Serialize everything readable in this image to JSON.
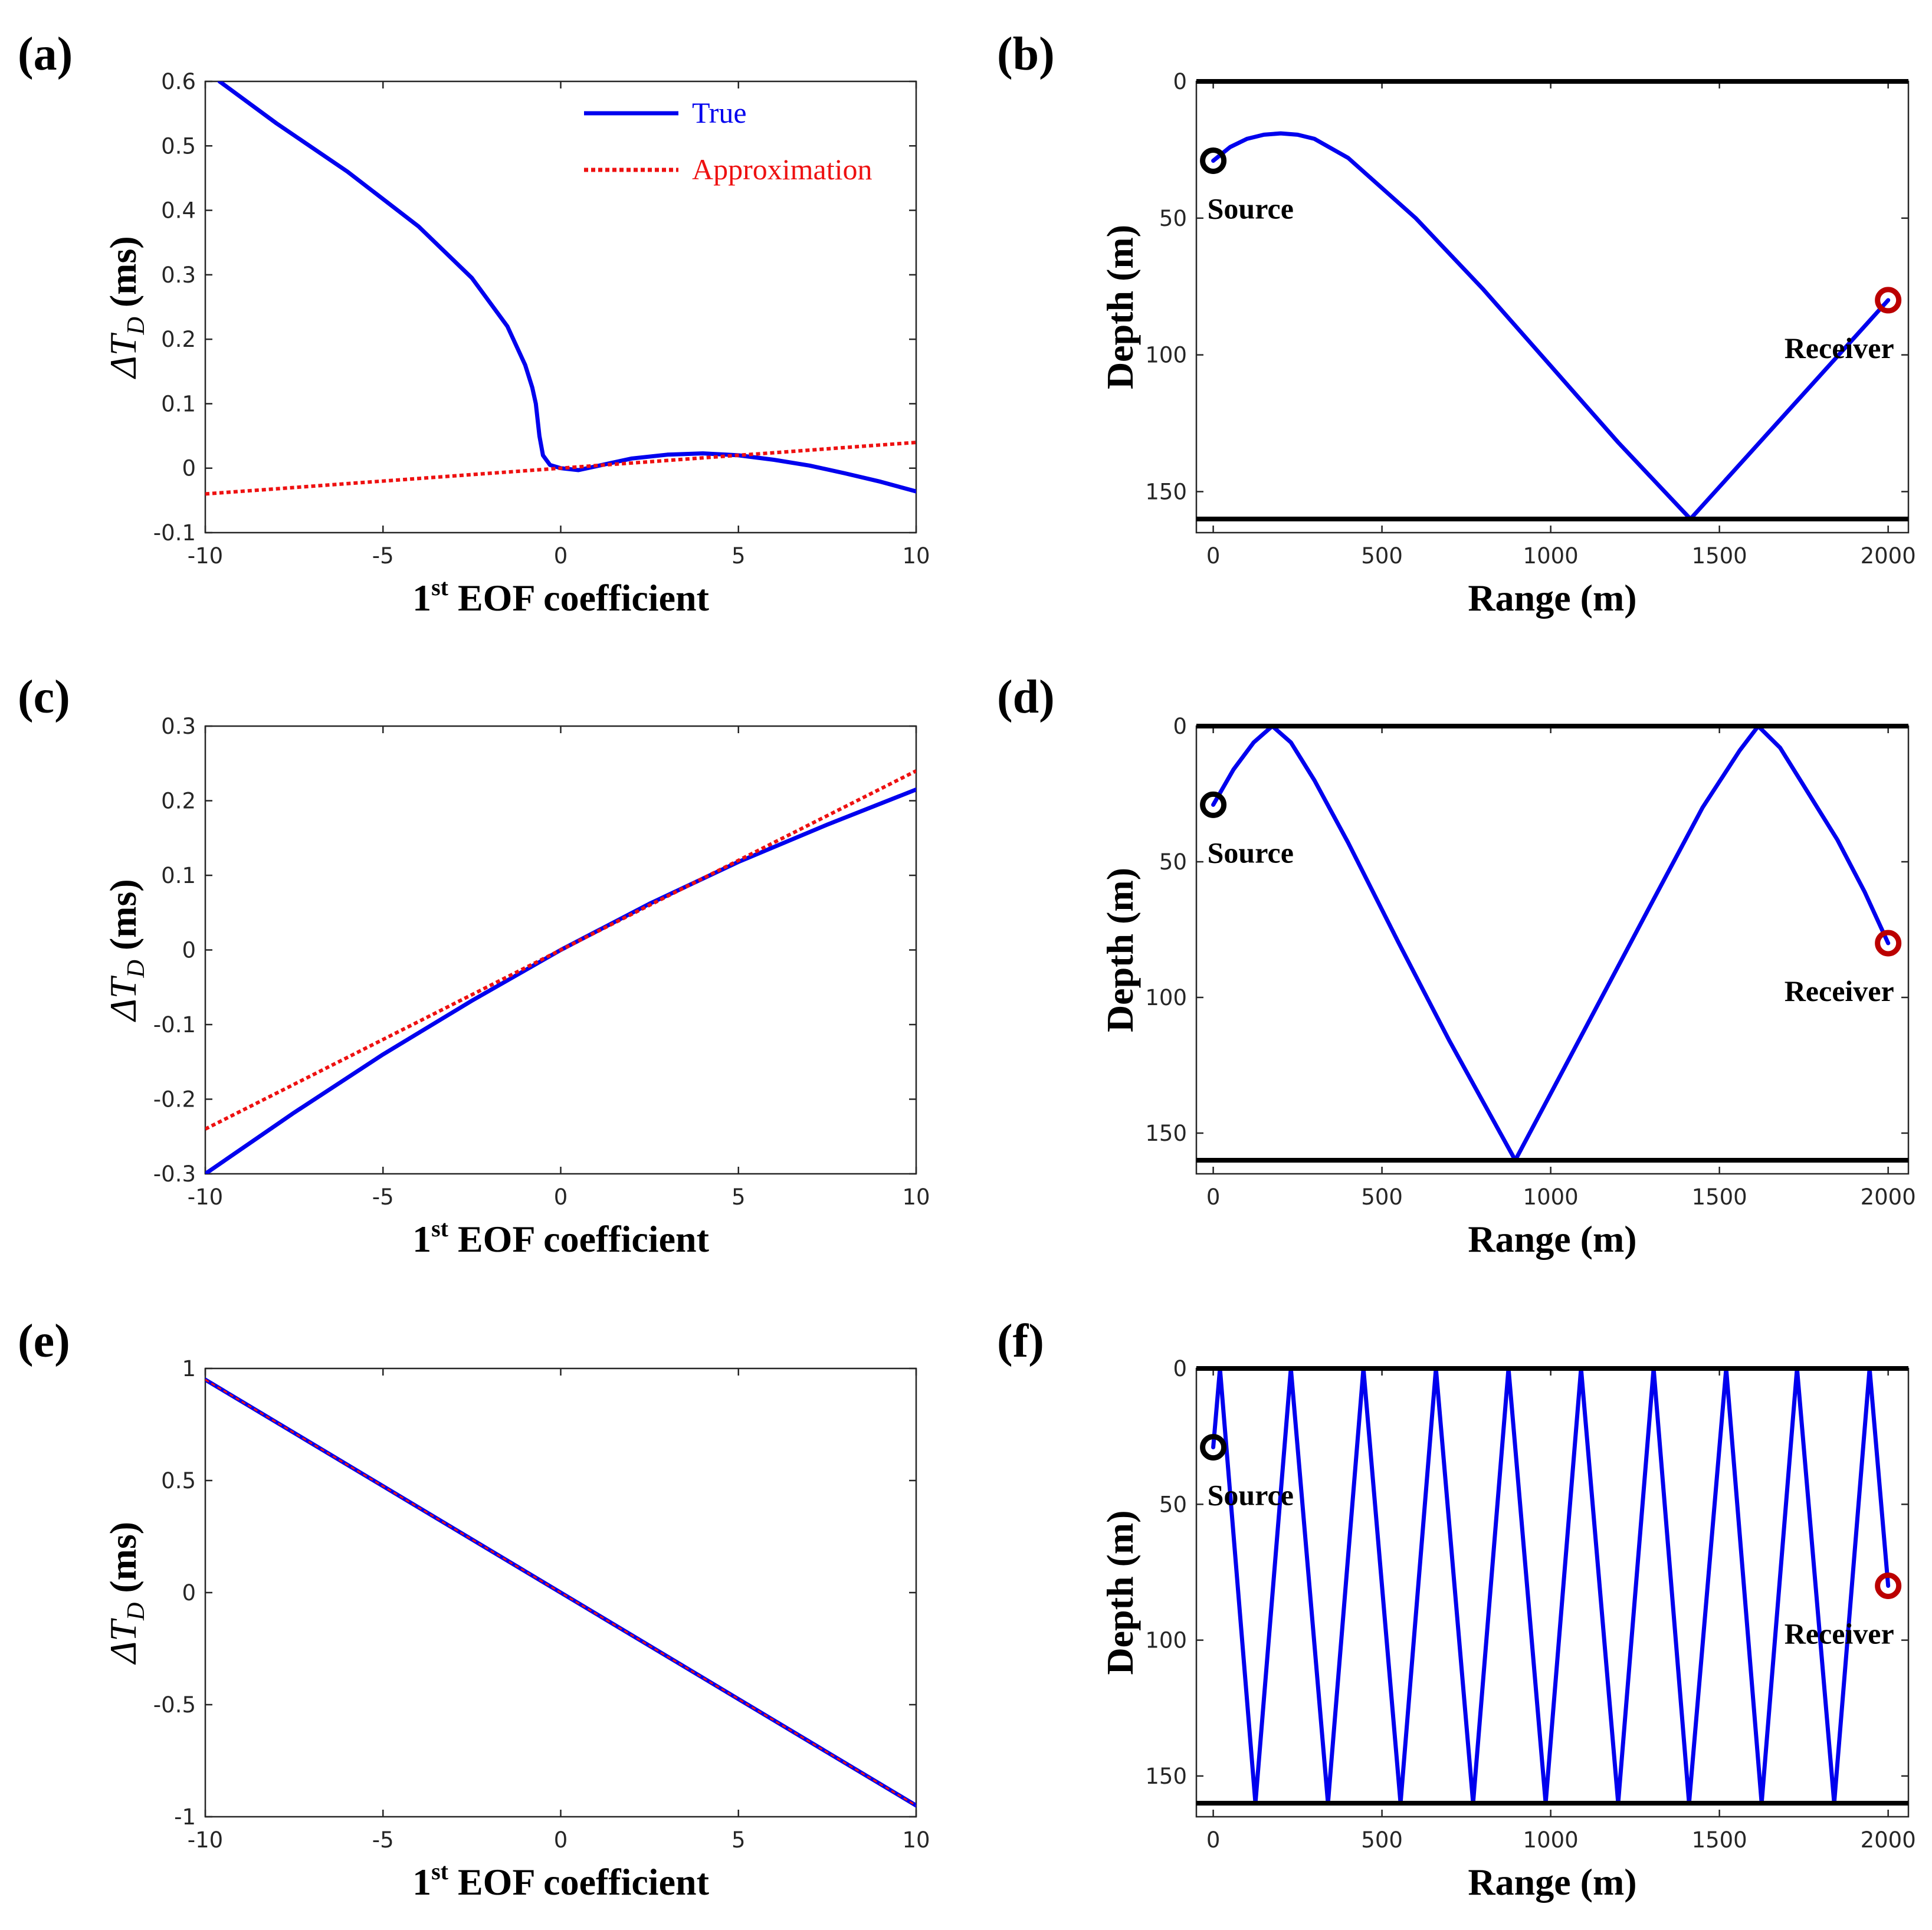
{
  "figure_labels": [
    "(a)",
    "(b)",
    "(c)",
    "(d)",
    "(e)",
    "(f)"
  ],
  "colors": {
    "true": "#0000ee",
    "approximation": "#ee1111",
    "boundary": "#000000",
    "source": "#000000",
    "receiver": "#bb0000"
  },
  "chart_data": [
    {
      "id": "a",
      "type": "line",
      "label": "(a)",
      "xlabel_main": "1",
      "xlabel_sup": "st",
      "xlabel_rest": " EOF coefficient",
      "ylabel_delta": "ΔT",
      "ylabel_sub": "D",
      "ylabel_unit": "  (ms)",
      "xlim": [
        -10,
        10
      ],
      "ylim": [
        -0.1,
        0.6
      ],
      "xticks": [
        -10,
        -5,
        0,
        5,
        10
      ],
      "xtick_labels": [
        "-10",
        "-5",
        "0",
        "5",
        "10"
      ],
      "yticks": [
        -0.1,
        0,
        0.1,
        0.2,
        0.3,
        0.4,
        0.5,
        0.6
      ],
      "ytick_labels": [
        "-0.1",
        "0",
        "0.1",
        "0.2",
        "0.3",
        "0.4",
        "0.5",
        "0.6"
      ],
      "legend": {
        "position": "top-right",
        "entries": [
          "True",
          "Approximation"
        ]
      },
      "series": [
        {
          "name": "True",
          "style": "solid",
          "x": [
            -9.6,
            -8,
            -6,
            -4,
            -2.5,
            -1.5,
            -1,
            -0.8,
            -0.7,
            -0.6,
            -0.5,
            -0.3,
            0,
            0.5,
            1,
            2,
            3,
            4,
            5,
            6,
            7,
            8,
            9,
            10
          ],
          "y": [
            0.6,
            0.535,
            0.46,
            0.375,
            0.295,
            0.22,
            0.16,
            0.125,
            0.1,
            0.05,
            0.02,
            0.005,
            0,
            -0.003,
            0.003,
            0.015,
            0.021,
            0.023,
            0.02,
            0.013,
            0.004,
            -0.008,
            -0.021,
            -0.036
          ]
        },
        {
          "name": "Approximation",
          "style": "dotted",
          "x": [
            -10,
            10
          ],
          "y": [
            -0.04,
            0.04
          ]
        }
      ]
    },
    {
      "id": "b",
      "type": "line",
      "label": "(b)",
      "xlabel": "Range (m)",
      "ylabel": "Depth (m)",
      "xlim": [
        -50,
        2060
      ],
      "ylim": [
        0,
        165
      ],
      "y_reversed": true,
      "xticks": [
        0,
        500,
        1000,
        1500,
        2000
      ],
      "xtick_labels": [
        "0",
        "500",
        "1000",
        "1500",
        "2000"
      ],
      "yticks": [
        0,
        50,
        100,
        150
      ],
      "ytick_labels": [
        "0",
        "50",
        "100",
        "150"
      ],
      "boundaries": [
        0,
        160
      ],
      "source": {
        "x": 0,
        "y": 29,
        "label": "Source"
      },
      "receiver": {
        "x": 2000,
        "y": 80,
        "label": "Receiver"
      },
      "series": [
        {
          "name": "Ray",
          "style": "solid",
          "x": [
            0,
            50,
            100,
            150,
            200,
            250,
            300,
            400,
            600,
            800,
            1000,
            1200,
            1414,
            2000
          ],
          "y": [
            29,
            24,
            21,
            19.5,
            19,
            19.5,
            21,
            28,
            50,
            76,
            104,
            132,
            160,
            80
          ]
        }
      ]
    },
    {
      "id": "c",
      "type": "line",
      "label": "(c)",
      "xlabel_main": "1",
      "xlabel_sup": "st",
      "xlabel_rest": " EOF coefficient",
      "ylabel_delta": "ΔT",
      "ylabel_sub": "D",
      "ylabel_unit": "  (ms)",
      "xlim": [
        -10,
        10
      ],
      "ylim": [
        -0.3,
        0.3
      ],
      "xticks": [
        -10,
        -5,
        0,
        5,
        10
      ],
      "xtick_labels": [
        "-10",
        "-5",
        "0",
        "5",
        "10"
      ],
      "yticks": [
        -0.3,
        -0.2,
        -0.1,
        0,
        0.1,
        0.2,
        0.3
      ],
      "ytick_labels": [
        "-0.3",
        "-0.2",
        "-0.1",
        "0",
        "0.1",
        "0.2",
        "0.3"
      ],
      "series": [
        {
          "name": "True",
          "style": "solid",
          "x": [
            -10,
            -7.5,
            -5,
            -2.5,
            0,
            2.5,
            5,
            7.5,
            10
          ],
          "y": [
            -0.3,
            -0.218,
            -0.14,
            -0.068,
            0,
            0.062,
            0.118,
            0.168,
            0.215
          ]
        },
        {
          "name": "Approximation",
          "style": "dotted",
          "x": [
            -10,
            10
          ],
          "y": [
            -0.24,
            0.24
          ]
        }
      ]
    },
    {
      "id": "d",
      "type": "line",
      "label": "(d)",
      "xlabel": "Range (m)",
      "ylabel": "Depth (m)",
      "xlim": [
        -50,
        2060
      ],
      "ylim": [
        0,
        165
      ],
      "y_reversed": true,
      "xticks": [
        0,
        500,
        1000,
        1500,
        2000
      ],
      "xtick_labels": [
        "0",
        "500",
        "1000",
        "1500",
        "2000"
      ],
      "yticks": [
        0,
        50,
        100,
        150
      ],
      "ytick_labels": [
        "0",
        "50",
        "100",
        "150"
      ],
      "boundaries": [
        0,
        160
      ],
      "source": {
        "x": 0,
        "y": 29,
        "label": "Source"
      },
      "receiver": {
        "x": 2000,
        "y": 80,
        "label": "Receiver"
      },
      "series": [
        {
          "name": "Ray",
          "style": "solid",
          "x": [
            0,
            60,
            120,
            175,
            230,
            300,
            400,
            550,
            700,
            895,
            1100,
            1300,
            1450,
            1560,
            1615,
            1680,
            1760,
            1850,
            1930,
            2000
          ],
          "y": [
            29,
            16,
            6,
            0,
            6,
            20,
            43,
            80,
            116,
            160,
            112,
            65,
            30,
            9,
            0,
            8,
            24,
            42,
            61,
            80
          ]
        }
      ]
    },
    {
      "id": "e",
      "type": "line",
      "label": "(e)",
      "xlabel_main": "1",
      "xlabel_sup": "st",
      "xlabel_rest": " EOF coefficient",
      "ylabel_delta": "ΔT",
      "ylabel_sub": "D",
      "ylabel_unit": "  (ms)",
      "xlim": [
        -10,
        10
      ],
      "ylim": [
        -1,
        1
      ],
      "xticks": [
        -10,
        -5,
        0,
        5,
        10
      ],
      "xtick_labels": [
        "-10",
        "-5",
        "0",
        "5",
        "10"
      ],
      "yticks": [
        -1,
        -0.5,
        0,
        0.5,
        1
      ],
      "ytick_labels": [
        "-1",
        "-0.5",
        "0",
        "0.5",
        "1"
      ],
      "series": [
        {
          "name": "True",
          "style": "solid",
          "x": [
            -10,
            10
          ],
          "y": [
            0.95,
            -0.95
          ]
        },
        {
          "name": "Approximation",
          "style": "dotted",
          "x": [
            -10,
            10
          ],
          "y": [
            0.95,
            -0.95
          ]
        }
      ]
    },
    {
      "id": "f",
      "type": "line",
      "label": "(f)",
      "xlabel": "Range (m)",
      "ylabel": "Depth (m)",
      "xlim": [
        -50,
        2060
      ],
      "ylim": [
        0,
        165
      ],
      "y_reversed": true,
      "xticks": [
        0,
        500,
        1000,
        1500,
        2000
      ],
      "xtick_labels": [
        "0",
        "500",
        "1000",
        "1500",
        "2000"
      ],
      "yticks": [
        0,
        50,
        100,
        150
      ],
      "ytick_labels": [
        "0",
        "50",
        "100",
        "150"
      ],
      "boundaries": [
        0,
        160
      ],
      "source": {
        "x": 0,
        "y": 29,
        "label": "Source"
      },
      "receiver": {
        "x": 2000,
        "y": 80,
        "label": "Receiver"
      },
      "series": [
        {
          "name": "Ray",
          "style": "solid",
          "x": [
            0,
            20,
            125,
            230,
            340,
            445,
            555,
            660,
            770,
            875,
            985,
            1090,
            1200,
            1305,
            1410,
            1520,
            1625,
            1730,
            1840,
            1945,
            2000
          ],
          "y": [
            29,
            0,
            160,
            0,
            160,
            0,
            160,
            0,
            160,
            0,
            160,
            0,
            160,
            0,
            160,
            0,
            160,
            0,
            160,
            0,
            80
          ]
        }
      ]
    }
  ]
}
